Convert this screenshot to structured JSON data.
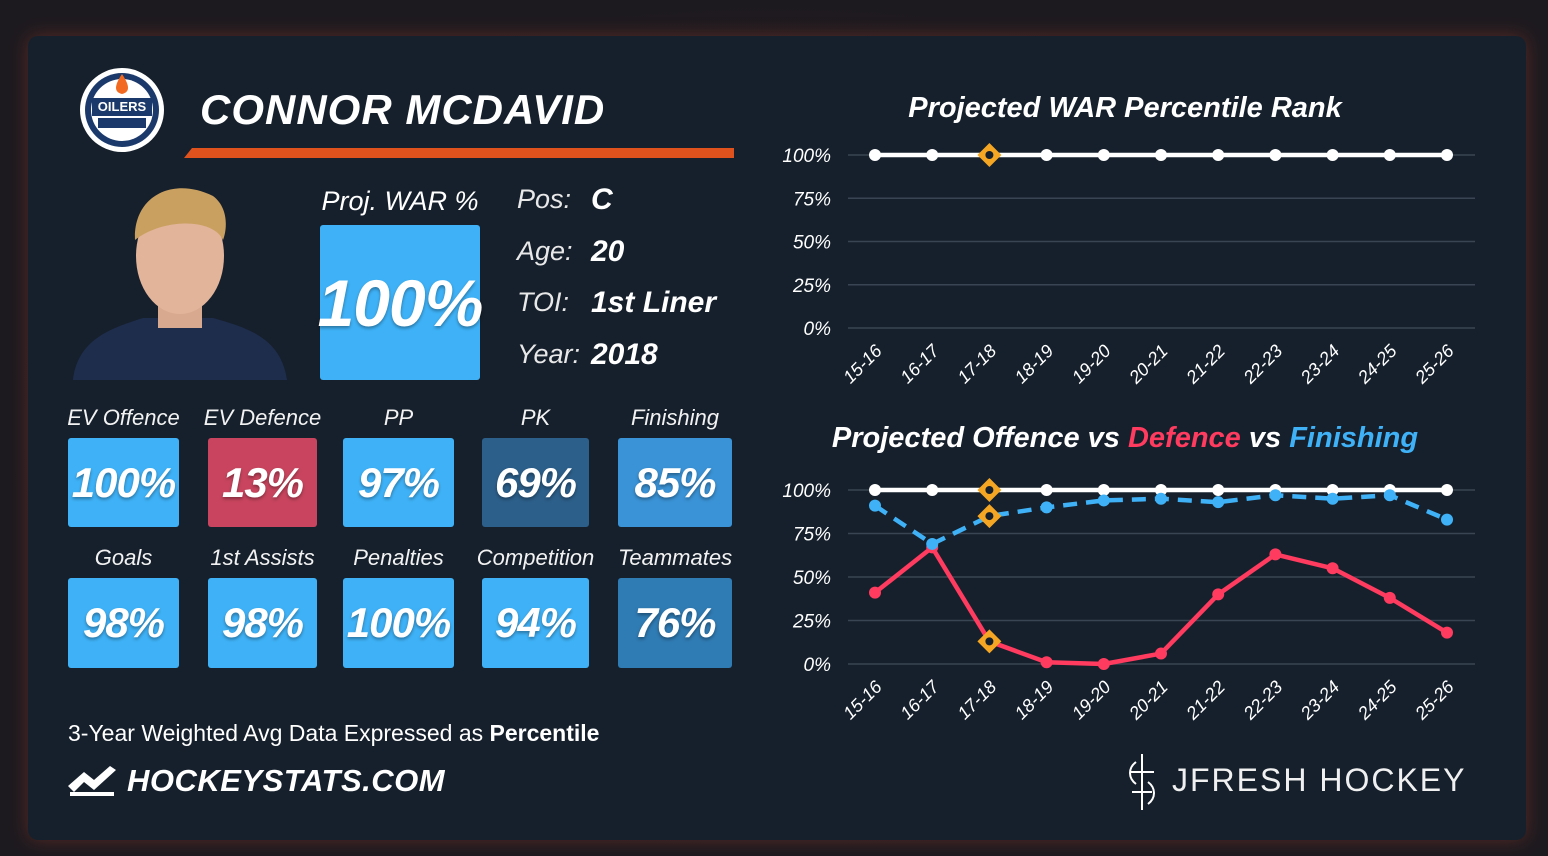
{
  "card": {
    "logo_text": "OILERS",
    "player_name": "CONNOR MCDAVID",
    "war": {
      "label": "Proj. WAR %",
      "value": "100%",
      "color": "#3fb2f7"
    },
    "bio": [
      {
        "label": "Pos:",
        "value": "C"
      },
      {
        "label": "Age:",
        "value": "20"
      },
      {
        "label": "TOI:",
        "value": "1st Liner"
      },
      {
        "label": "Year:",
        "value": "2018"
      }
    ],
    "metrics": [
      {
        "label": "EV Offence",
        "value": "100%",
        "color": "#3fb2f7"
      },
      {
        "label": "EV Defence",
        "value": "13%",
        "color": "#c9455f"
      },
      {
        "label": "PP",
        "value": "97%",
        "color": "#3fb2f7"
      },
      {
        "label": "PK",
        "value": "69%",
        "color": "#2c5f8a"
      },
      {
        "label": "Finishing",
        "value": "85%",
        "color": "#3a93d6"
      },
      {
        "label": "Goals",
        "value": "98%",
        "color": "#3fb2f7"
      },
      {
        "label": "1st Assists",
        "value": "98%",
        "color": "#3fb2f7"
      },
      {
        "label": "Penalties",
        "value": "100%",
        "color": "#3fb2f7"
      },
      {
        "label": "Competition",
        "value": "94%",
        "color": "#3fb2f7"
      },
      {
        "label": "Teammates",
        "value": "76%",
        "color": "#2f7bb3"
      }
    ],
    "footnote": {
      "text": "3-Year Weighted Avg Data Expressed as",
      "emphasis": "Percentile"
    },
    "source": "HOCKEYSTATS.COM",
    "credit": "JFRESH HOCKEY"
  },
  "chart_data": [
    {
      "type": "line",
      "title": "Projected WAR Percentile Rank",
      "categories": [
        "15-16",
        "16-17",
        "17-18",
        "18-19",
        "19-20",
        "20-21",
        "21-22",
        "22-23",
        "23-24",
        "24-25",
        "25-26"
      ],
      "series": [
        {
          "color": "#ffffff",
          "values": [
            100,
            100,
            100,
            100,
            100,
            100,
            100,
            100,
            100,
            100,
            100
          ]
        }
      ],
      "highlight_category": "17-18",
      "highlight_color": "#f5a623",
      "ylim": [
        0,
        100
      ],
      "yticks": [
        {
          "value": 0,
          "label": "0%"
        },
        {
          "value": 25,
          "label": "25%"
        },
        {
          "value": 50,
          "label": "50%"
        },
        {
          "value": 75,
          "label": "75%"
        },
        {
          "value": 100,
          "label": "100%"
        }
      ],
      "grid": true
    },
    {
      "type": "line",
      "title_prefix": "Projected",
      "title_joiner": "vs",
      "categories": [
        "15-16",
        "16-17",
        "17-18",
        "18-19",
        "19-20",
        "20-21",
        "21-22",
        "22-23",
        "23-24",
        "24-25",
        "25-26"
      ],
      "series": [
        {
          "name": "Offence",
          "color": "#ffffff",
          "values": [
            100,
            100,
            100,
            100,
            100,
            100,
            100,
            100,
            100,
            100,
            100
          ]
        },
        {
          "name": "Defence",
          "color": "#ff3b5f",
          "values": [
            41,
            67,
            13,
            1,
            0,
            6,
            40,
            63,
            55,
            38,
            18
          ]
        },
        {
          "name": "Finishing",
          "color": "#3fb2f7",
          "dashed": true,
          "values": [
            91,
            69,
            85,
            90,
            94,
            95,
            93,
            97,
            95,
            97,
            83
          ]
        }
      ],
      "highlight_category": "17-18",
      "highlight_color": "#f5a623",
      "ylim": [
        0,
        100
      ],
      "yticks": [
        {
          "value": 0,
          "label": "0%"
        },
        {
          "value": 25,
          "label": "25%"
        },
        {
          "value": 50,
          "label": "50%"
        },
        {
          "value": 75,
          "label": "75%"
        },
        {
          "value": 100,
          "label": "100%"
        }
      ],
      "grid": true
    }
  ]
}
